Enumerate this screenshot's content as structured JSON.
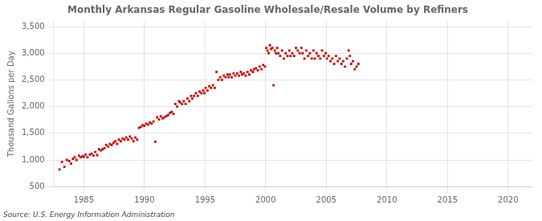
{
  "chart_data": {
    "type": "scatter",
    "title": "Monthly Arkansas Regular Gasoline Wholesale/Resale Volume by Refiners",
    "ylabel": "Thousand Gallons per Day",
    "source": "Source: U.S. Energy Information Administration",
    "color": "#CC0000",
    "marker": "square",
    "grid": true,
    "xlim": [
      1982.5,
      2022
    ],
    "ylim": [
      500,
      3600
    ],
    "xticks": [
      1985,
      1990,
      1995,
      2000,
      2005,
      2010,
      2015,
      2020
    ],
    "yticks": [
      500,
      {
        "value": 1000,
        "label": "1,000"
      },
      {
        "value": 1500,
        "label": "1,500"
      },
      {
        "value": 2000,
        "label": "2,000"
      },
      {
        "value": 2500,
        "label": "2,500"
      },
      {
        "value": 3000,
        "label": "3,000"
      },
      {
        "value": 3500,
        "label": "3,500"
      }
    ],
    "x": [
      1983.0,
      1983.2,
      1983.4,
      1983.6,
      1983.8,
      1983.95,
      1984.1,
      1984.25,
      1984.4,
      1984.6,
      1984.75,
      1984.9,
      1985.0,
      1985.15,
      1985.3,
      1985.5,
      1985.65,
      1985.8,
      1985.95,
      1986.1,
      1986.25,
      1986.4,
      1986.55,
      1986.7,
      1986.85,
      1987.0,
      1987.15,
      1987.3,
      1987.45,
      1987.6,
      1987.75,
      1987.9,
      1988.05,
      1988.2,
      1988.35,
      1988.5,
      1988.65,
      1988.8,
      1988.95,
      1989.1,
      1989.25,
      1989.4,
      1989.55,
      1989.7,
      1989.85,
      1990.0,
      1990.15,
      1990.3,
      1990.45,
      1990.6,
      1990.75,
      1990.9,
      1991.05,
      1991.2,
      1991.35,
      1991.5,
      1991.65,
      1991.8,
      1991.95,
      1992.1,
      1992.25,
      1992.4,
      1992.55,
      1992.7,
      1992.85,
      1992.95,
      1993.1,
      1993.25,
      1993.4,
      1993.55,
      1993.7,
      1993.85,
      1993.95,
      1994.1,
      1994.25,
      1994.4,
      1994.55,
      1994.7,
      1994.85,
      1994.95,
      1995.05,
      1995.2,
      1995.35,
      1995.5,
      1995.65,
      1995.8,
      1995.95,
      1996.1,
      1996.25,
      1996.4,
      1996.55,
      1996.7,
      1996.85,
      1996.95,
      1997.05,
      1997.2,
      1997.35,
      1997.5,
      1997.65,
      1997.8,
      1997.95,
      1998.05,
      1998.2,
      1998.35,
      1998.5,
      1998.65,
      1998.8,
      1998.95,
      1999.05,
      1999.2,
      1999.35,
      1999.5,
      1999.65,
      1999.8,
      1999.95,
      2000.05,
      2000.15,
      2000.25,
      2000.35,
      2000.45,
      2000.55,
      2000.65,
      2000.75,
      2000.85,
      2000.95,
      2001.05,
      2001.2,
      2001.35,
      2001.5,
      2001.65,
      2001.8,
      2001.95,
      2002.05,
      2002.2,
      2002.35,
      2002.5,
      2002.65,
      2002.8,
      2002.95,
      2003.05,
      2003.2,
      2003.35,
      2003.5,
      2003.65,
      2003.8,
      2003.95,
      2004.05,
      2004.2,
      2004.35,
      2004.5,
      2004.65,
      2004.8,
      2004.95,
      2005.05,
      2005.2,
      2005.35,
      2005.5,
      2005.65,
      2005.8,
      2005.95,
      2006.1,
      2006.25,
      2006.4,
      2006.55,
      2006.7,
      2006.85,
      2006.95,
      2007.05,
      2007.2,
      2007.35,
      2007.5,
      2007.65
    ],
    "values": [
      820,
      960,
      870,
      1000,
      980,
      930,
      1020,
      1050,
      1000,
      1080,
      1050,
      1070,
      1060,
      1100,
      1050,
      1100,
      1120,
      1080,
      1150,
      1090,
      1200,
      1180,
      1200,
      1220,
      1280,
      1250,
      1300,
      1280,
      1320,
      1350,
      1300,
      1380,
      1350,
      1400,
      1380,
      1420,
      1380,
      1440,
      1400,
      1350,
      1420,
      1380,
      1600,
      1620,
      1650,
      1640,
      1680,
      1660,
      1700,
      1680,
      1720,
      1340,
      1800,
      1760,
      1820,
      1780,
      1800,
      1820,
      1840,
      1880,
      1900,
      1860,
      2050,
      2000,
      2100,
      2080,
      2050,
      2100,
      2050,
      2150,
      2100,
      2200,
      2150,
      2200,
      2250,
      2200,
      2280,
      2250,
      2300,
      2250,
      2350,
      2300,
      2380,
      2350,
      2400,
      2350,
      2650,
      2500,
      2550,
      2500,
      2580,
      2550,
      2600,
      2550,
      2600,
      2550,
      2620,
      2580,
      2620,
      2580,
      2650,
      2600,
      2620,
      2580,
      2650,
      2600,
      2680,
      2650,
      2700,
      2720,
      2680,
      2750,
      2700,
      2780,
      2750,
      3100,
      3050,
      3000,
      3150,
      3080,
      3100,
      2400,
      3050,
      3000,
      3100,
      3000,
      2950,
      3050,
      2900,
      3000,
      2950,
      3050,
      2950,
      3000,
      2950,
      3100,
      3050,
      3000,
      3100,
      3000,
      2900,
      3050,
      2950,
      3000,
      2900,
      3050,
      2900,
      3000,
      2950,
      2900,
      3050,
      2950,
      3000,
      2900,
      2950,
      2850,
      2900,
      2800,
      2950,
      2850,
      2900,
      2800,
      2850,
      2750,
      2900,
      3050,
      2950,
      2800,
      2850,
      2700,
      2750,
      2800
    ]
  }
}
